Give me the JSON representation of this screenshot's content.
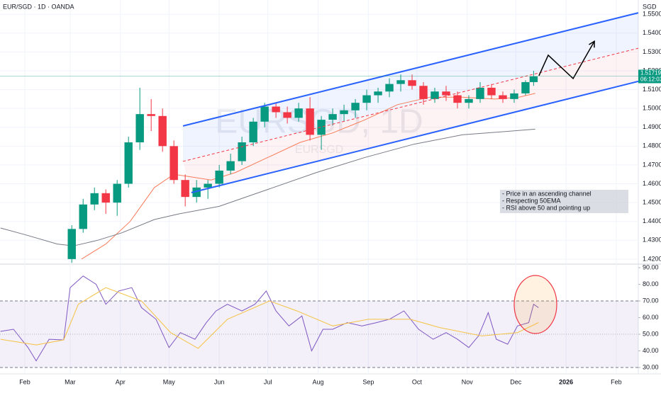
{
  "chart_data": [
    {
      "type": "candlestick",
      "title": "EUR/SGD · 1D · OANDA",
      "watermark": [
        "EURSGD, 1D",
        "EURSGD"
      ],
      "currency": "SGD",
      "last_price": 1.51719,
      "countdown": "06:12:03",
      "up_color": "#089981",
      "down_color": "#f23645",
      "x": [
        29,
        36,
        43,
        50,
        57,
        64,
        71,
        78,
        85,
        92,
        99,
        106,
        113,
        120,
        127,
        134,
        141,
        148,
        155,
        162,
        169,
        176,
        183,
        190,
        197,
        204,
        211,
        218,
        225,
        232,
        239,
        246,
        253,
        260,
        267,
        274,
        281,
        288,
        295,
        302,
        309,
        314
      ],
      "open": [
        1.42,
        1.436,
        1.449,
        1.455,
        1.45,
        1.46,
        1.482,
        1.497,
        1.496,
        1.48,
        1.462,
        1.453,
        1.458,
        1.46,
        1.467,
        1.472,
        1.482,
        1.493,
        1.501,
        1.498,
        1.495,
        1.5,
        1.486,
        1.494,
        1.497,
        1.499,
        1.503,
        1.507,
        1.509,
        1.513,
        1.515,
        1.512,
        1.505,
        1.509,
        1.507,
        1.503,
        1.505,
        1.511,
        1.507,
        1.505,
        1.508,
        1.514
      ],
      "high": [
        1.438,
        1.452,
        1.458,
        1.457,
        1.462,
        1.485,
        1.511,
        1.505,
        1.5,
        1.483,
        1.465,
        1.462,
        1.462,
        1.47,
        1.476,
        1.485,
        1.495,
        1.503,
        1.503,
        1.501,
        1.503,
        1.506,
        1.496,
        1.5,
        1.502,
        1.505,
        1.51,
        1.511,
        1.516,
        1.518,
        1.518,
        1.514,
        1.511,
        1.512,
        1.509,
        1.507,
        1.514,
        1.513,
        1.509,
        1.51,
        1.515,
        1.52
      ],
      "low": [
        1.418,
        1.434,
        1.446,
        1.444,
        1.443,
        1.458,
        1.478,
        1.488,
        1.477,
        1.46,
        1.448,
        1.45,
        1.452,
        1.458,
        1.465,
        1.47,
        1.48,
        1.49,
        1.495,
        1.492,
        1.493,
        1.483,
        1.478,
        1.491,
        1.493,
        1.495,
        1.499,
        1.503,
        1.506,
        1.509,
        1.51,
        1.502,
        1.503,
        1.504,
        1.5,
        1.5,
        1.503,
        1.505,
        1.503,
        1.503,
        1.507,
        1.512
      ],
      "close": [
        1.436,
        1.449,
        1.455,
        1.45,
        1.46,
        1.482,
        1.497,
        1.496,
        1.48,
        1.462,
        1.453,
        1.458,
        1.46,
        1.467,
        1.472,
        1.482,
        1.493,
        1.501,
        1.498,
        1.495,
        1.5,
        1.486,
        1.494,
        1.497,
        1.499,
        1.503,
        1.507,
        1.509,
        1.513,
        1.515,
        1.512,
        1.505,
        1.509,
        1.507,
        1.503,
        1.505,
        1.511,
        1.507,
        1.505,
        1.508,
        1.514,
        1.517
      ],
      "lines": [
        {
          "color": "#f77c5a",
          "x": [
            35,
            50,
            65,
            80,
            92,
            100,
            115,
            130,
            150,
            170,
            190,
            210,
            230,
            250,
            270,
            290,
            305,
            315
          ],
          "values": [
            1.42,
            1.428,
            1.44,
            1.458,
            1.465,
            1.464,
            1.462,
            1.466,
            1.474,
            1.482,
            1.487,
            1.494,
            1.502,
            1.506,
            1.506,
            1.505,
            1.506,
            1.508
          ]
        },
        {
          "color": "#787b86",
          "x": [
            -15,
            0,
            20,
            30,
            45,
            60,
            80,
            95,
            120,
            150,
            180,
            210,
            240,
            270,
            300,
            315
          ],
          "values": [
            1.4365,
            1.433,
            1.428,
            1.427,
            1.43,
            1.434,
            1.441,
            1.444,
            1.448,
            1.457,
            1.466,
            1.474,
            1.481,
            1.486,
            1.488,
            1.489
          ]
        }
      ],
      "channel_upper": {
        "color": "#2962ff",
        "x": [
          97.6,
          378.6
        ],
        "y": [
          1.4907,
          1.5508
        ]
      },
      "channel_mid": {
        "color": "#f23645",
        "x": [
          97.6,
          378.6
        ],
        "y": [
          1.4719,
          1.532
        ]
      },
      "channel_lower": {
        "color": "#2962ff",
        "x": [
          102.8,
          378.6
        ],
        "y": [
          1.4553,
          1.5144
        ]
      },
      "projection": {
        "color": "#000000",
        "x": [
          317.3,
          323,
          338.4,
          351.5
        ],
        "y": [
          1.5174,
          1.5283,
          1.5159,
          1.5357
        ]
      },
      "annotation": [
        "- Price in an ascending channel",
        "- Respecting 50EMA",
        "- RSI above 50 and pointing up"
      ],
      "xlim": [
        -15.3,
        378.6
      ],
      "ylim": [
        1.4177,
        1.5576
      ],
      "yticks": [
        {
          "value": 1.42,
          "label": "1.42000"
        },
        {
          "value": 1.43,
          "label": "1.43000"
        },
        {
          "value": 1.44,
          "label": "1.44000"
        },
        {
          "value": 1.45,
          "label": "1.45000"
        },
        {
          "value": 1.46,
          "label": "1.46000"
        },
        {
          "value": 1.47,
          "label": "1.47000"
        },
        {
          "value": 1.48,
          "label": "1.48000"
        },
        {
          "value": 1.49,
          "label": "1.49000"
        },
        {
          "value": 1.5,
          "label": "1.50000"
        },
        {
          "value": 1.51,
          "label": "1.51000"
        },
        {
          "value": 1.52,
          "label": "1.52000"
        },
        {
          "value": 1.53,
          "label": "1.53000"
        },
        {
          "value": 1.54,
          "label": "1.54000"
        },
        {
          "value": 1.55,
          "label": "1.55000"
        }
      ],
      "xticks": [
        {
          "value": 0,
          "label": "Feb"
        },
        {
          "value": 28,
          "label": "Mar"
        },
        {
          "value": 59,
          "label": "Apr"
        },
        {
          "value": 89,
          "label": "May"
        },
        {
          "value": 120,
          "label": "Jun"
        },
        {
          "value": 150,
          "label": "Jul"
        },
        {
          "value": 181,
          "label": "Aug"
        },
        {
          "value": 212,
          "label": "Sep"
        },
        {
          "value": 242,
          "label": "Oct"
        },
        {
          "value": 273,
          "label": "Nov"
        },
        {
          "value": 303,
          "label": "Dec"
        },
        {
          "value": 334,
          "label": "2026"
        },
        {
          "value": 365,
          "label": "Feb"
        }
      ]
    },
    {
      "type": "line",
      "xlim": [
        -15.3,
        378.6
      ],
      "ylim": [
        26.6,
        91.3
      ],
      "series": [
        {
          "color": "#7e57c2",
          "x": [
            -15,
            -7,
            2,
            7,
            15,
            24,
            28,
            36,
            44,
            50,
            58,
            66,
            72,
            81,
            89,
            96,
            105,
            112,
            118,
            125,
            134,
            142,
            149,
            155,
            163,
            171,
            177,
            184,
            190,
            199,
            208,
            217,
            225,
            234,
            243,
            252,
            260,
            267,
            274,
            280,
            286,
            291,
            298,
            304,
            311,
            314,
            317
          ],
          "values": [
            51.7,
            53,
            42,
            34,
            47,
            46.6,
            78,
            85,
            80,
            68,
            76,
            78,
            66,
            59,
            42,
            51,
            47,
            57,
            64,
            68,
            64,
            68,
            76,
            64,
            55,
            61,
            40,
            53,
            53,
            57,
            55,
            57,
            59,
            64,
            53,
            47,
            51,
            47,
            42,
            49,
            63,
            47,
            44,
            55,
            57,
            68,
            66
          ]
        },
        {
          "color": "#f5c242",
          "x": [
            -15,
            7,
            24,
            33,
            50,
            72,
            90,
            107,
            125,
            151,
            168,
            190,
            212,
            238,
            256,
            282,
            304,
            317
          ],
          "values": [
            47,
            43.6,
            46.6,
            68,
            78,
            70,
            51,
            41.5,
            59,
            70,
            64,
            55,
            59,
            59,
            54,
            49,
            51,
            57
          ]
        }
      ],
      "band": [
        30,
        70
      ],
      "midline": 50,
      "band_color": "#7e57c2",
      "yticks": [
        {
          "value": 30,
          "label": "30.00"
        },
        {
          "value": 40,
          "label": "40.00"
        },
        {
          "value": 50,
          "label": "50.00"
        },
        {
          "value": 60,
          "label": "60.00"
        },
        {
          "value": 70,
          "label": "70.00"
        },
        {
          "value": 80,
          "label": "80.00"
        },
        {
          "value": 90,
          "label": "90.00"
        }
      ]
    }
  ]
}
